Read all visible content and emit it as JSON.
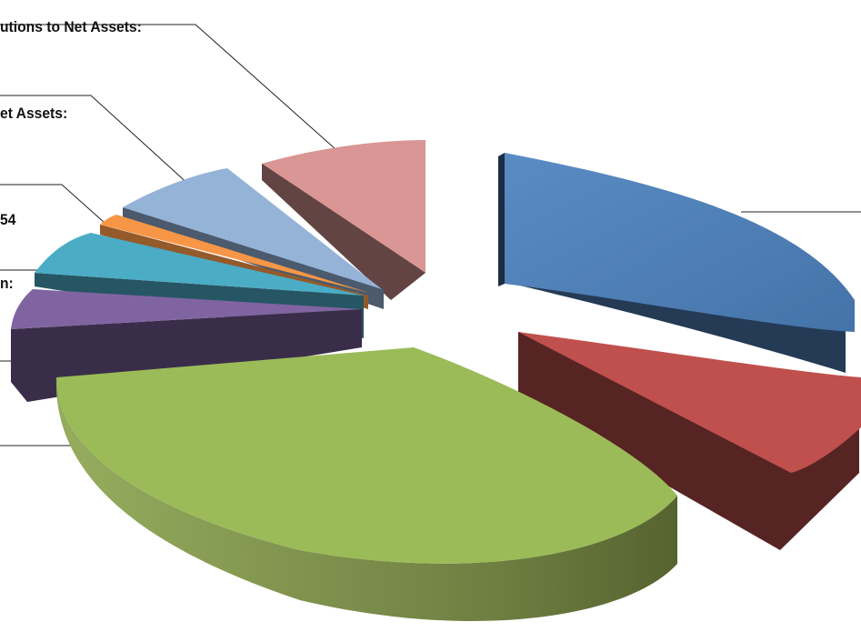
{
  "chart_data": {
    "type": "pie",
    "style": "exploded-3d",
    "title": "",
    "labels": [
      "utions to Net Assets:",
      "et Assets:",
      "54",
      "n:"
    ],
    "slices": [
      {
        "color": "#4f81bd",
        "share": 0.25
      },
      {
        "color": "#c0504d",
        "share": 0.085
      },
      {
        "color": "#9bbb59",
        "share": 0.36
      },
      {
        "color": "#8064a2",
        "share": 0.06
      },
      {
        "color": "#4bacc6",
        "share": 0.05
      },
      {
        "color": "#f79646",
        "share": 0.01
      },
      {
        "color": "#95b3d7",
        "share": 0.065
      },
      {
        "color": "#d99694",
        "share": 0.085
      }
    ]
  }
}
